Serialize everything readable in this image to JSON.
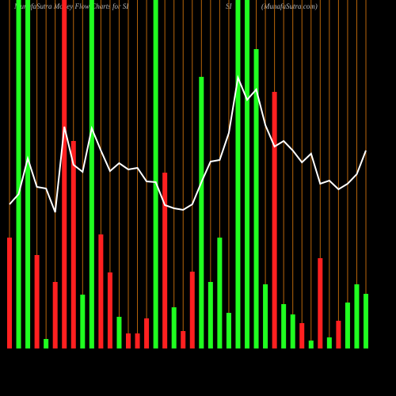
{
  "chart_data": {
    "type": "bar-line",
    "title": "MunafaSutra  Money Flow Charts for SI",
    "symbol": "SI",
    "source": "(MunafaSutra.com)",
    "ylim": [
      0,
      440
    ],
    "guide_color": "#b8650a",
    "line_color": "#ffffff",
    "bars": {
      "values": [
        140,
        440,
        440,
        118,
        12,
        84,
        440,
        262,
        68,
        440,
        144,
        96,
        40,
        19,
        19,
        38,
        440,
        222,
        52,
        22,
        97,
        343,
        84,
        140,
        45,
        440,
        440,
        378,
        81,
        324,
        56,
        43,
        32,
        10,
        114,
        14,
        35,
        58,
        81,
        69
      ],
      "colors": [
        "#ff2020",
        "#20ff20",
        "#20ff20",
        "#ff2020",
        "#20ff20",
        "#ff2020",
        "#ff2020",
        "#ff2020",
        "#20ff20",
        "#20ff20",
        "#ff2020",
        "#ff2020",
        "#20ff20",
        "#ff2020",
        "#ff2020",
        "#ff2020",
        "#20ff20",
        "#ff2020",
        "#20ff20",
        "#ff2020",
        "#ff2020",
        "#20ff20",
        "#20ff20",
        "#20ff20",
        "#20ff20",
        "#20ff20",
        "#20ff20",
        "#20ff20",
        "#20ff20",
        "#ff2020",
        "#20ff20",
        "#20ff20",
        "#ff2020",
        "#20ff20",
        "#ff2020",
        "#20ff20",
        "#ff2020",
        "#20ff20",
        "#20ff20",
        "#20ff20"
      ]
    },
    "line": {
      "values": [
        182,
        195,
        240,
        204,
        202,
        172,
        280,
        232,
        223,
        278,
        250,
        224,
        234,
        226,
        228,
        211,
        210,
        181,
        177,
        175,
        182,
        210,
        236,
        238,
        272,
        342,
        314,
        327,
        282,
        255,
        262,
        250,
        235,
        246,
        208,
        212,
        201,
        208,
        220,
        250
      ]
    }
  }
}
